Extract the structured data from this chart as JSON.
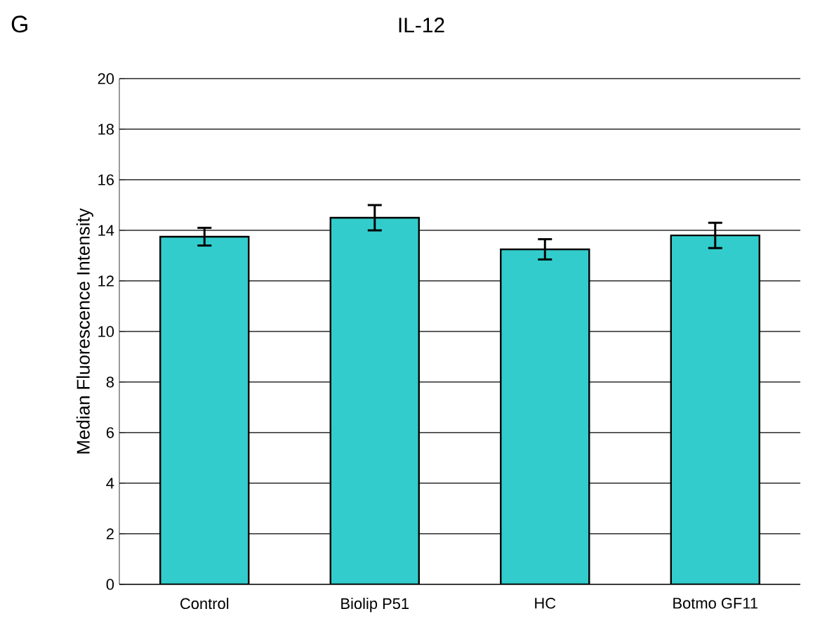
{
  "chart_data": {
    "type": "bar",
    "title": "IL-12",
    "ylabel": "Median Fluorescence Intensity",
    "annotations": [
      "G"
    ],
    "categories": [
      "Control",
      "Biolip P51",
      "HC",
      "Botmo GF11"
    ],
    "values": [
      13.75,
      14.5,
      13.25,
      13.8
    ],
    "errors": [
      0.35,
      0.5,
      0.4,
      0.5
    ],
    "color": "#33cccc",
    "ylim": [
      0,
      20
    ],
    "yticks": [
      0,
      2,
      4,
      6,
      8,
      10,
      12,
      14,
      16,
      18,
      20
    ],
    "grid": "y"
  }
}
